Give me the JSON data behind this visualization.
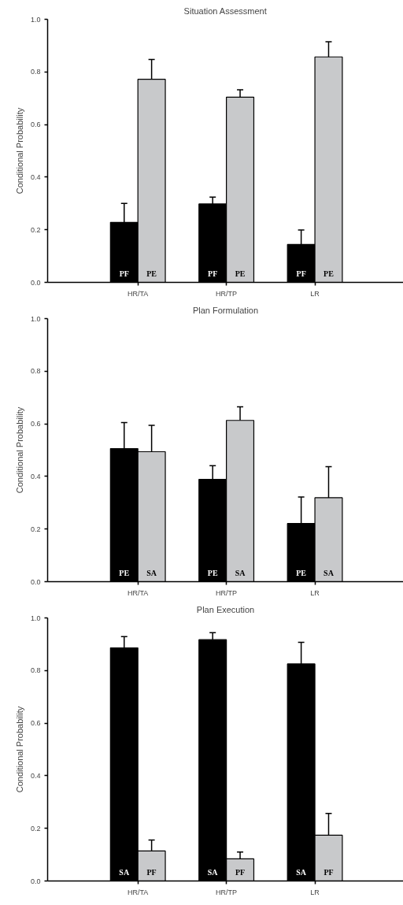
{
  "chart_data": [
    {
      "type": "bar",
      "title": "Situation Assessment",
      "ylabel": "Conditional Probability",
      "categories": [
        "HR/TA",
        "HR/TP",
        "LR"
      ],
      "ylim": [
        0,
        1
      ],
      "yticks": [
        {
          "value": 0,
          "label": "0.0"
        },
        {
          "value": 0.2,
          "label": "0.2"
        },
        {
          "value": 0.4,
          "label": "0.4"
        },
        {
          "value": 0.6,
          "label": "0.6"
        },
        {
          "value": 0.8,
          "label": "0.8"
        },
        {
          "value": 1,
          "label": "1.0"
        }
      ],
      "grid": false,
      "legend": false,
      "series": [
        {
          "name": "PF",
          "color": "#000000",
          "values": [
            0.228,
            0.298,
            0.144
          ],
          "errors": [
            [
              0.228,
              0.3
            ],
            [
              0.298,
              0.324
            ],
            [
              0.144,
              0.199
            ]
          ]
        },
        {
          "name": "PE",
          "color": "#c8c9cb",
          "values": [
            0.772,
            0.704,
            0.857
          ],
          "errors": [
            [
              0.772,
              0.847
            ],
            [
              0.704,
              0.732
            ],
            [
              0.857,
              0.915
            ]
          ]
        }
      ]
    },
    {
      "type": "bar",
      "title": "Plan Formulation",
      "ylabel": "Conditional Probability",
      "categories": [
        "HR/TA",
        "HR/TP",
        "LR"
      ],
      "ylim": [
        0,
        1
      ],
      "yticks": [
        {
          "value": 0,
          "label": "0.0"
        },
        {
          "value": 0.2,
          "label": "0.2"
        },
        {
          "value": 0.4,
          "label": "0.4"
        },
        {
          "value": 0.6,
          "label": "0.6"
        },
        {
          "value": 0.8,
          "label": "0.8"
        },
        {
          "value": 1,
          "label": "1.0"
        }
      ],
      "grid": false,
      "legend": false,
      "series": [
        {
          "name": "PE",
          "color": "#000000",
          "values": [
            0.506,
            0.389,
            0.221
          ],
          "errors": [
            [
              0.506,
              0.605
            ],
            [
              0.389,
              0.441
            ],
            [
              0.221,
              0.322
            ]
          ]
        },
        {
          "name": "SA",
          "color": "#c8c9cb",
          "values": [
            0.494,
            0.613,
            0.319
          ],
          "errors": [
            [
              0.494,
              0.594
            ],
            [
              0.613,
              0.665
            ],
            [
              0.319,
              0.437
            ]
          ]
        }
      ]
    },
    {
      "type": "bar",
      "title": "Plan Execution",
      "ylabel": "Conditional Probability",
      "categories": [
        "HR/TA",
        "HR/TP",
        "LR"
      ],
      "ylim": [
        0,
        1
      ],
      "yticks": [
        {
          "value": 0,
          "label": "0.0"
        },
        {
          "value": 0.2,
          "label": "0.2"
        },
        {
          "value": 0.4,
          "label": "0.4"
        },
        {
          "value": 0.6,
          "label": "0.6"
        },
        {
          "value": 0.8,
          "label": "0.8"
        },
        {
          "value": 1,
          "label": "1.0"
        }
      ],
      "grid": false,
      "legend": false,
      "series": [
        {
          "name": "SA",
          "color": "#000000",
          "values": [
            0.886,
            0.917,
            0.825
          ],
          "errors": [
            [
              0.886,
              0.929
            ],
            [
              0.917,
              0.944
            ],
            [
              0.825,
              0.907
            ]
          ]
        },
        {
          "name": "PF",
          "color": "#c8c9cb",
          "values": [
            0.114,
            0.084,
            0.174
          ],
          "errors": [
            [
              0.114,
              0.156
            ],
            [
              0.084,
              0.11
            ],
            [
              0.174,
              0.257
            ]
          ]
        }
      ]
    }
  ]
}
